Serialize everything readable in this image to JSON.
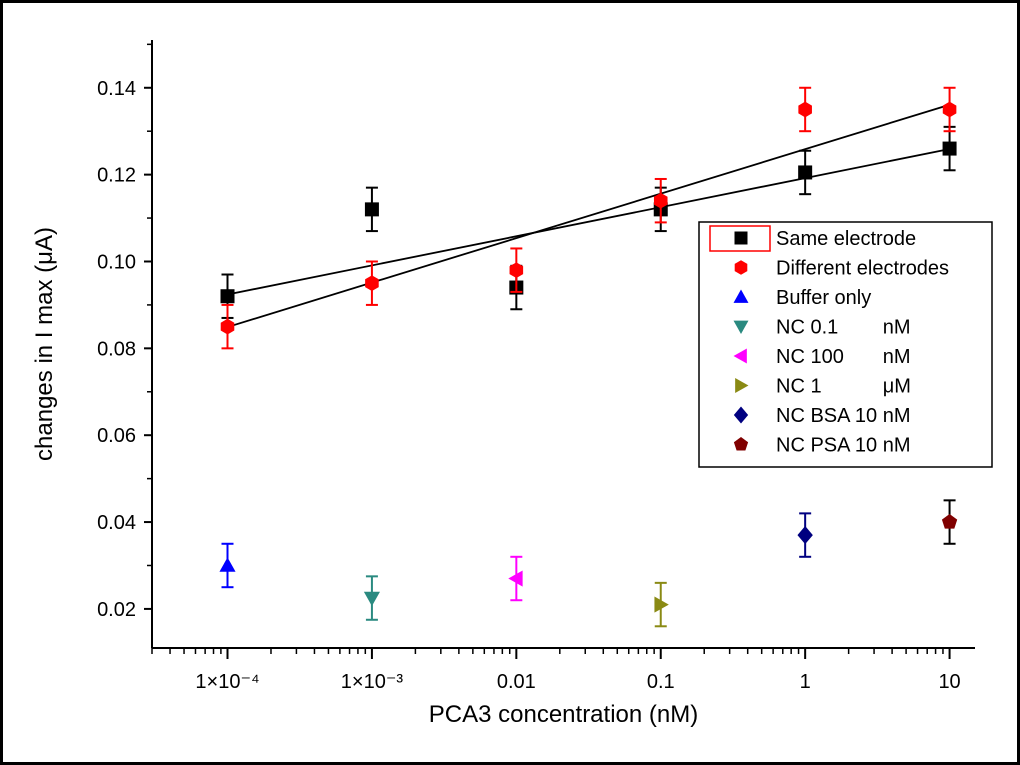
{
  "chart_data": {
    "type": "scatter",
    "xlabel": "PCA3 concentration (nM)",
    "ylabel": "changes in I max (μA)",
    "xscale": "log",
    "xlim": [
      3e-05,
      15
    ],
    "ylim": [
      0.011,
      0.151
    ],
    "x_ticks": [
      {
        "value": 0.0001,
        "label": "1×10⁻⁴"
      },
      {
        "value": 0.001,
        "label": "1×10⁻³"
      },
      {
        "value": 0.01,
        "label": "0.01"
      },
      {
        "value": 0.1,
        "label": "0.1"
      },
      {
        "value": 1,
        "label": "1"
      },
      {
        "value": 10,
        "label": "10"
      }
    ],
    "y_ticks": [
      {
        "value": 0.02,
        "label": "0.02"
      },
      {
        "value": 0.04,
        "label": "0.04"
      },
      {
        "value": 0.06,
        "label": "0.06"
      },
      {
        "value": 0.08,
        "label": "0.08"
      },
      {
        "value": 0.1,
        "label": "0.10"
      },
      {
        "value": 0.12,
        "label": "0.12"
      },
      {
        "value": 0.14,
        "label": "0.14"
      }
    ],
    "legend_position": "right",
    "grid": false,
    "series": [
      {
        "name": "Same electrode",
        "marker": "square",
        "color": "#000000",
        "err_color": "#000000",
        "x": [
          0.0001,
          0.001,
          0.01,
          0.1,
          1,
          10
        ],
        "y": [
          0.092,
          0.112,
          0.094,
          0.112,
          0.1205,
          0.126
        ],
        "err": [
          0.005,
          0.005,
          0.005,
          0.005,
          0.005,
          0.005
        ],
        "fit": [
          0.0924,
          0.1259
        ]
      },
      {
        "name": "Different electrodes",
        "marker": "hexagon",
        "color": "#ff0000",
        "err_color": "#ff0000",
        "x": [
          0.0001,
          0.001,
          0.01,
          0.1,
          1,
          10
        ],
        "y": [
          0.085,
          0.095,
          0.098,
          0.114,
          0.135,
          0.135
        ],
        "err": [
          0.005,
          0.005,
          0.005,
          0.005,
          0.005,
          0.005
        ],
        "fit": [
          0.0849,
          0.1361
        ]
      },
      {
        "name": "Buffer only",
        "marker": "triangle-up",
        "color": "#0000ff",
        "err_color": "#0000ff",
        "x": [
          0.0001
        ],
        "y": [
          0.03
        ],
        "err": [
          0.005
        ]
      },
      {
        "name": "NC 0.1        nM",
        "marker": "triangle-down",
        "color": "#2a8a80",
        "err_color": "#2a8a80",
        "x": [
          0.001
        ],
        "y": [
          0.0225
        ],
        "err": [
          0.005
        ]
      },
      {
        "name": "NC 100       nM",
        "marker": "triangle-left",
        "color": "#ff00ff",
        "err_color": "#ff00ff",
        "x": [
          0.01
        ],
        "y": [
          0.027
        ],
        "err": [
          0.005
        ]
      },
      {
        "name": "NC 1           μM",
        "marker": "triangle-right",
        "color": "#8a8a14",
        "err_color": "#8a8a14",
        "x": [
          0.1
        ],
        "y": [
          0.021
        ],
        "err": [
          0.005
        ]
      },
      {
        "name": "NC BSA 10 nM",
        "marker": "diamond",
        "color": "#000080",
        "err_color": "#000080",
        "x": [
          1
        ],
        "y": [
          0.037
        ],
        "err": [
          0.005
        ]
      },
      {
        "name": "NC PSA 10 nM",
        "marker": "pentagon",
        "color": "#800000",
        "err_color": "#000000",
        "x": [
          10
        ],
        "y": [
          0.04
        ],
        "err": [
          0.005
        ]
      }
    ]
  }
}
